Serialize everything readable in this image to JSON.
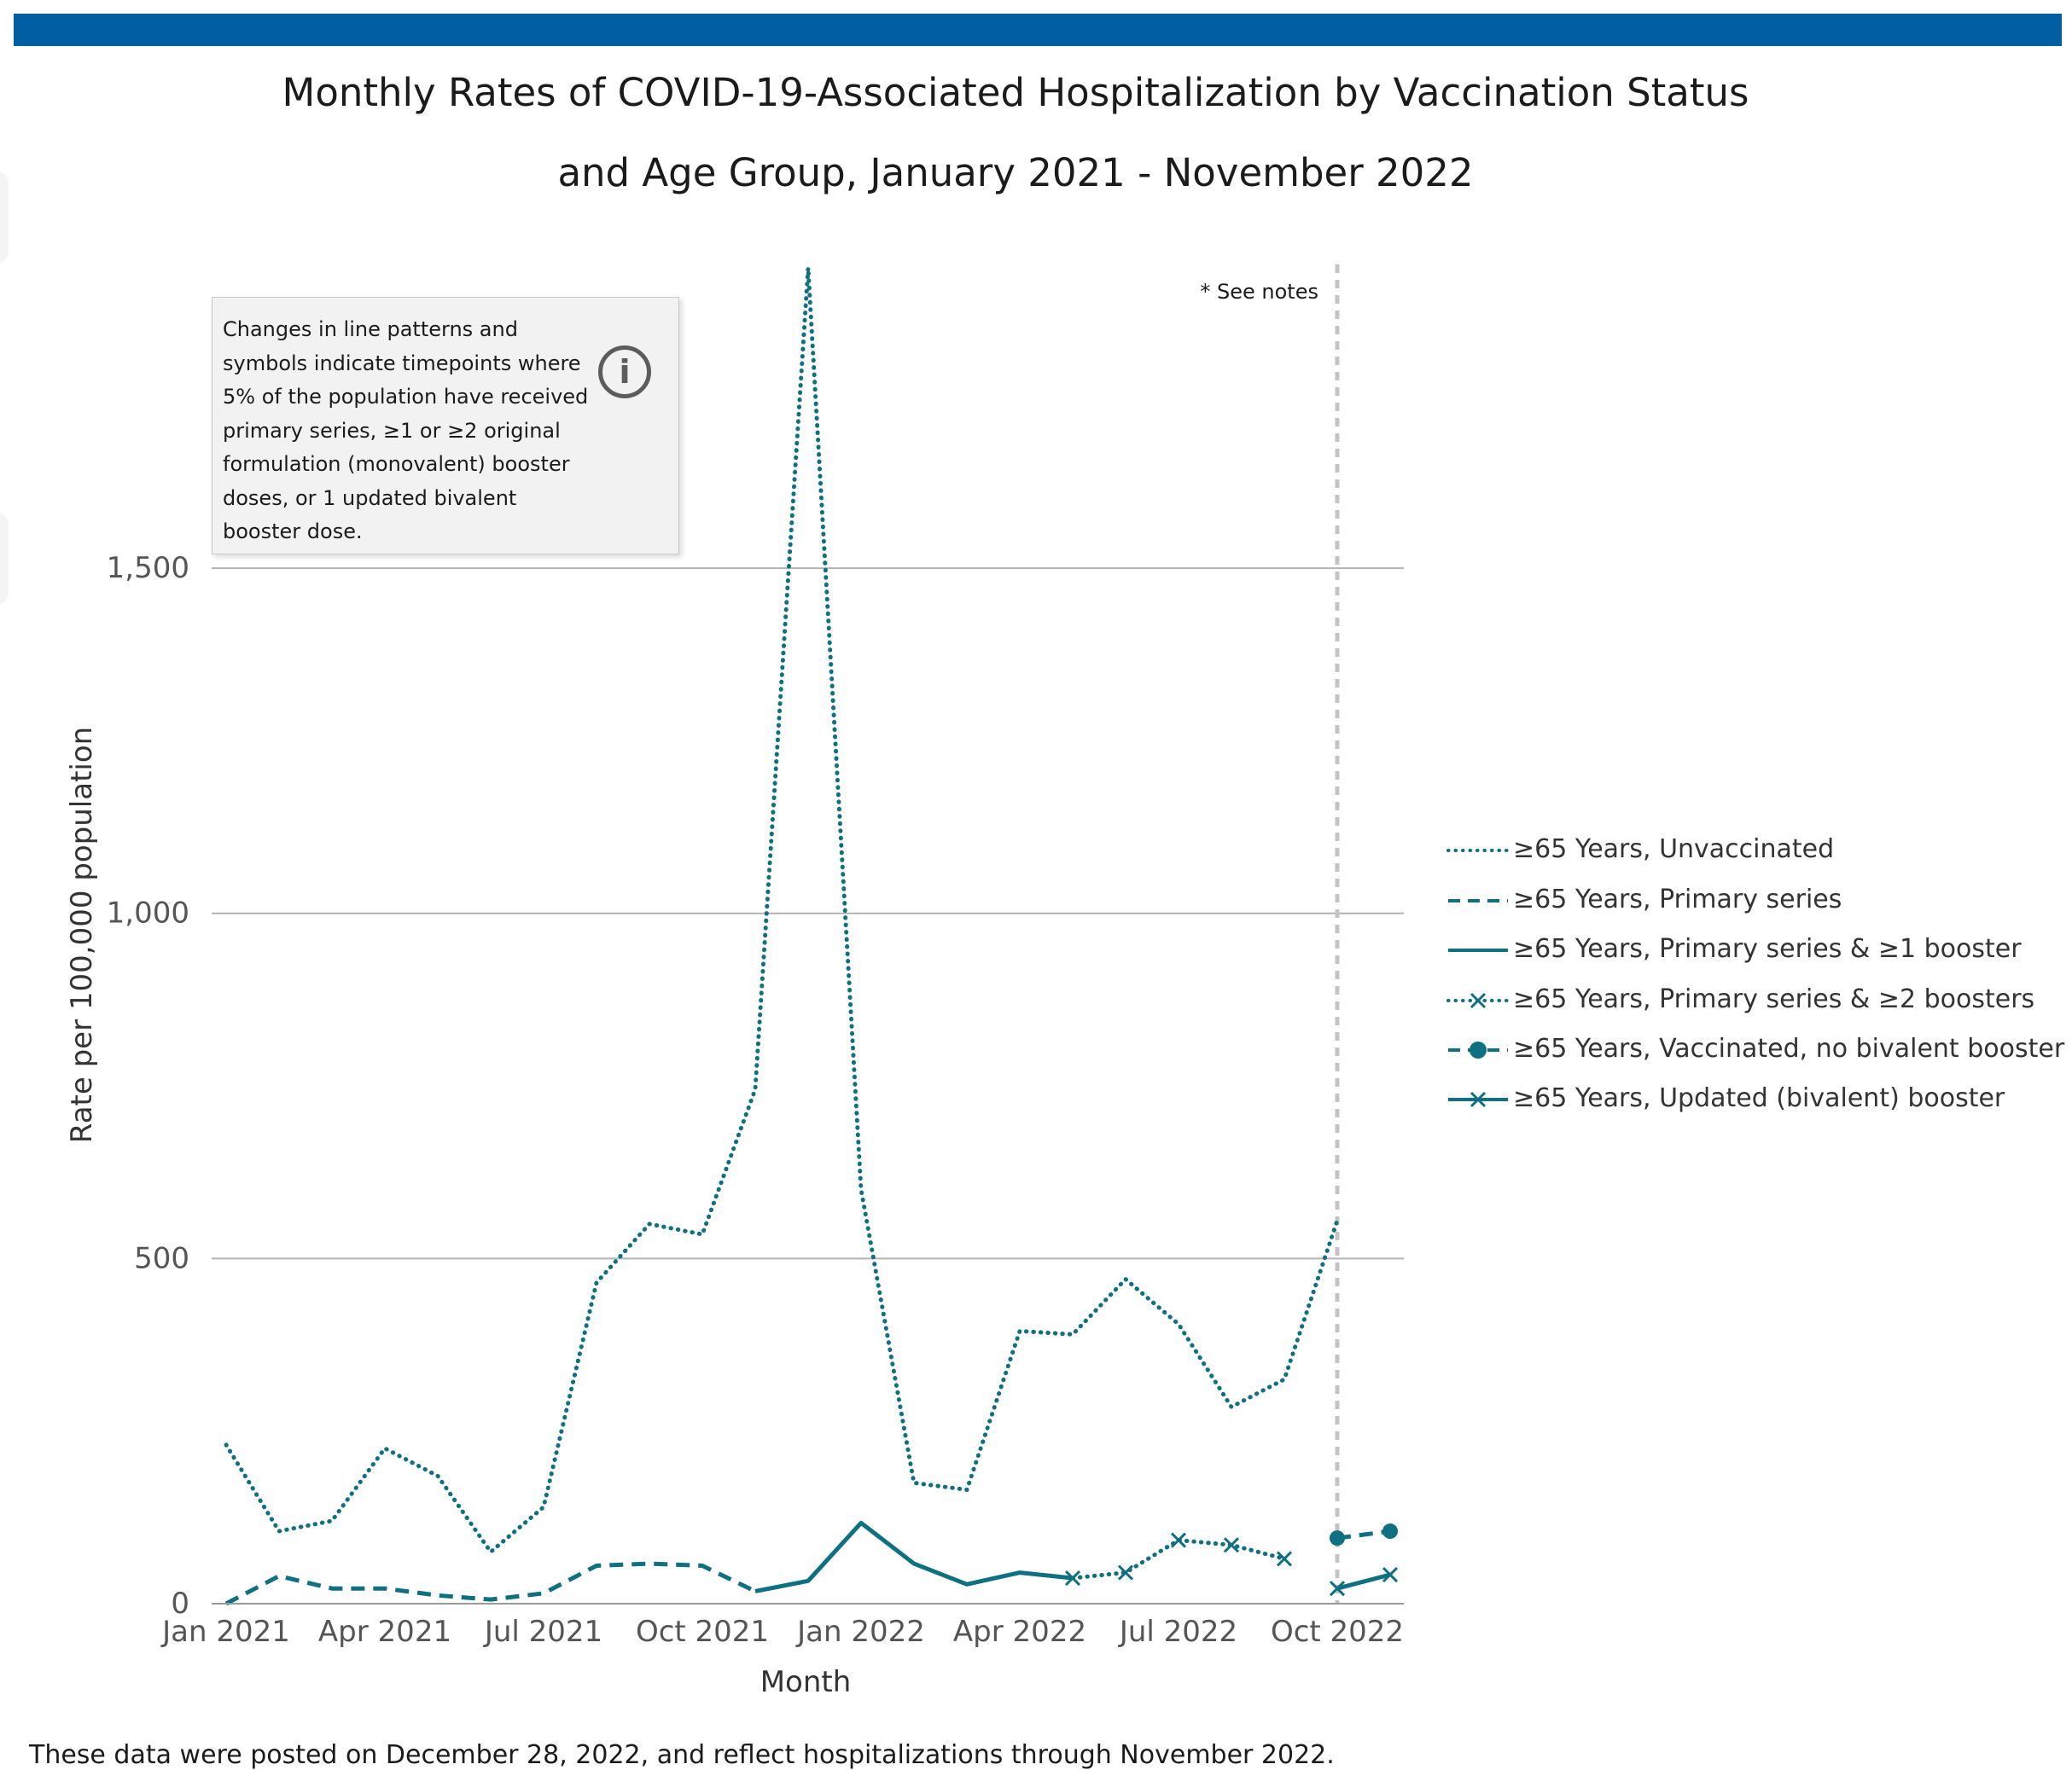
{
  "header": {
    "title_line1": "Monthly Rates of COVID-19-Associated Hospitalization by Vaccination Status",
    "title_line2": "and Age Group, January 2021 - November 2022"
  },
  "info_box": {
    "text": "Changes in line patterns and symbols indicate timepoints where 5% of the population have received primary series, ≥1 or ≥2 original formulation (monovalent) booster doses, or 1 updated bivalent booster dose.",
    "icon": "info-icon"
  },
  "see_notes": "* See notes",
  "footer": {
    "text": "These data were posted on December 28, 2022, and reflect hospitalizations through November 2022."
  },
  "colors": {
    "series": "#0e7080",
    "grid": "#b3b3b3",
    "top_bar": "#005ea2",
    "marker_line": "#c4c4c4"
  },
  "chart_data": {
    "type": "line",
    "xlabel": "Month",
    "ylabel": "Rate per 100,000 population",
    "ylim": [
      0,
      1940
    ],
    "yticks": [
      0,
      500,
      1000,
      1500
    ],
    "ytick_labels": [
      "0",
      "500",
      "1,000",
      "1,500"
    ],
    "grid": "horizontal",
    "legend_position": "right",
    "x": [
      "Jan 2021",
      "Feb 2021",
      "Mar 2021",
      "Apr 2021",
      "May 2021",
      "Jun 2021",
      "Jul 2021",
      "Aug 2021",
      "Sep 2021",
      "Oct 2021",
      "Nov 2021",
      "Dec 2021",
      "Jan 2022",
      "Feb 2022",
      "Mar 2022",
      "Apr 2022",
      "May 2022",
      "Jun 2022",
      "Jul 2022",
      "Aug 2022",
      "Sep 2022",
      "Oct 2022",
      "Nov 2022"
    ],
    "xtick_labels": [
      {
        "index": 0,
        "label": "Jan 2021"
      },
      {
        "index": 3,
        "label": "Apr 2021"
      },
      {
        "index": 6,
        "label": "Jul 2021"
      },
      {
        "index": 9,
        "label": "Oct 2021"
      },
      {
        "index": 12,
        "label": "Jan 2022"
      },
      {
        "index": 15,
        "label": "Apr 2022"
      },
      {
        "index": 18,
        "label": "Jul 2022"
      },
      {
        "index": 21,
        "label": "Oct 2022"
      }
    ],
    "vertical_marker_index": 21,
    "series": [
      {
        "name": "≥65 Years, Unvaccinated",
        "style": "dotted",
        "marker": "none",
        "values": [
          230,
          105,
          120,
          225,
          185,
          75,
          140,
          465,
          550,
          535,
          745,
          1935,
          600,
          175,
          165,
          395,
          390,
          470,
          405,
          285,
          325,
          555,
          null
        ]
      },
      {
        "name": "≥65 Years, Primary series",
        "style": "dashed",
        "marker": "none",
        "values": [
          0,
          40,
          22,
          22,
          12,
          6,
          15,
          55,
          58,
          55,
          18,
          null,
          null,
          null,
          null,
          null,
          null,
          null,
          null,
          null,
          null,
          null,
          null
        ]
      },
      {
        "name": "≥65 Years, Primary series & ≥1 booster",
        "style": "solid",
        "marker": "none",
        "values": [
          null,
          null,
          null,
          null,
          null,
          null,
          null,
          null,
          null,
          null,
          18,
          33,
          117,
          58,
          28,
          45,
          37,
          null,
          null,
          null,
          null,
          null,
          null
        ]
      },
      {
        "name": "≥65 Years, Primary series & ≥2 boosters",
        "style": "dotted",
        "marker": "x",
        "values": [
          null,
          null,
          null,
          null,
          null,
          null,
          null,
          null,
          null,
          null,
          null,
          null,
          null,
          null,
          null,
          null,
          37,
          45,
          92,
          85,
          65,
          null,
          null
        ]
      },
      {
        "name": "≥65 Years, Vaccinated, no bivalent booster",
        "style": "dashed",
        "marker": "circle",
        "values": [
          null,
          null,
          null,
          null,
          null,
          null,
          null,
          null,
          null,
          null,
          null,
          null,
          null,
          null,
          null,
          null,
          null,
          null,
          null,
          null,
          null,
          95,
          105
        ]
      },
      {
        "name": "≥65 Years, Updated (bivalent) booster",
        "style": "solid",
        "marker": "x",
        "values": [
          null,
          null,
          null,
          null,
          null,
          null,
          null,
          null,
          null,
          null,
          null,
          null,
          null,
          null,
          null,
          null,
          null,
          null,
          null,
          null,
          null,
          22,
          42
        ]
      }
    ]
  }
}
